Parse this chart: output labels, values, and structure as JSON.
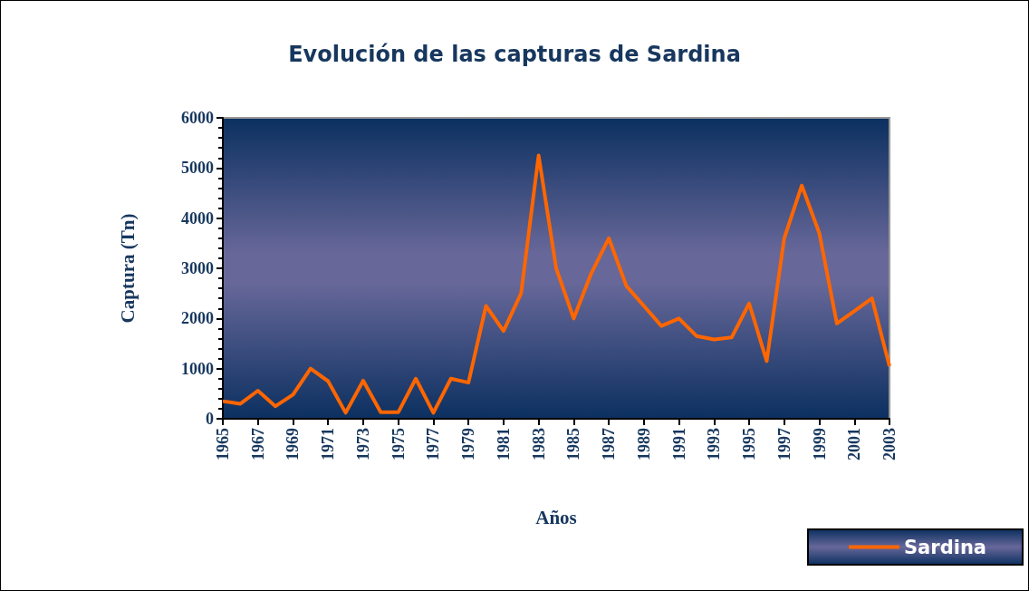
{
  "chart_data": {
    "type": "line",
    "title": "Evolución de las capturas de Sardina",
    "xlabel": "Años",
    "ylabel": "Captura (Tn)",
    "categories": [
      "1965",
      null,
      "1967",
      null,
      "1969",
      null,
      "1971",
      null,
      "1973",
      null,
      "1975",
      null,
      "1977",
      null,
      "1979",
      null,
      "1981",
      null,
      "1983",
      null,
      "1985",
      null,
      "1987",
      null,
      "1989",
      null,
      "1991",
      null,
      "1993",
      null,
      "1995",
      null,
      "1997",
      null,
      "1999",
      null,
      "2001",
      null,
      "2003"
    ],
    "series": [
      {
        "name": "Sardina",
        "color": "#ff6600",
        "values": [
          350,
          300,
          560,
          250,
          480,
          1000,
          750,
          120,
          760,
          130,
          130,
          800,
          120,
          800,
          720,
          2250,
          1750,
          2500,
          5250,
          3000,
          2000,
          2900,
          3600,
          2650,
          2250,
          1850,
          2000,
          1650,
          1580,
          1620,
          2300,
          1150,
          3600,
          4650,
          3700,
          1900,
          2150,
          2400,
          1050
        ]
      }
    ],
    "ylim": [
      0,
      6000
    ],
    "yticks": [
      0,
      1000,
      2000,
      3000,
      4000,
      5000,
      6000
    ],
    "grid": false,
    "legend": "bottom right",
    "marker": "none",
    "line_style": "solid"
  }
}
